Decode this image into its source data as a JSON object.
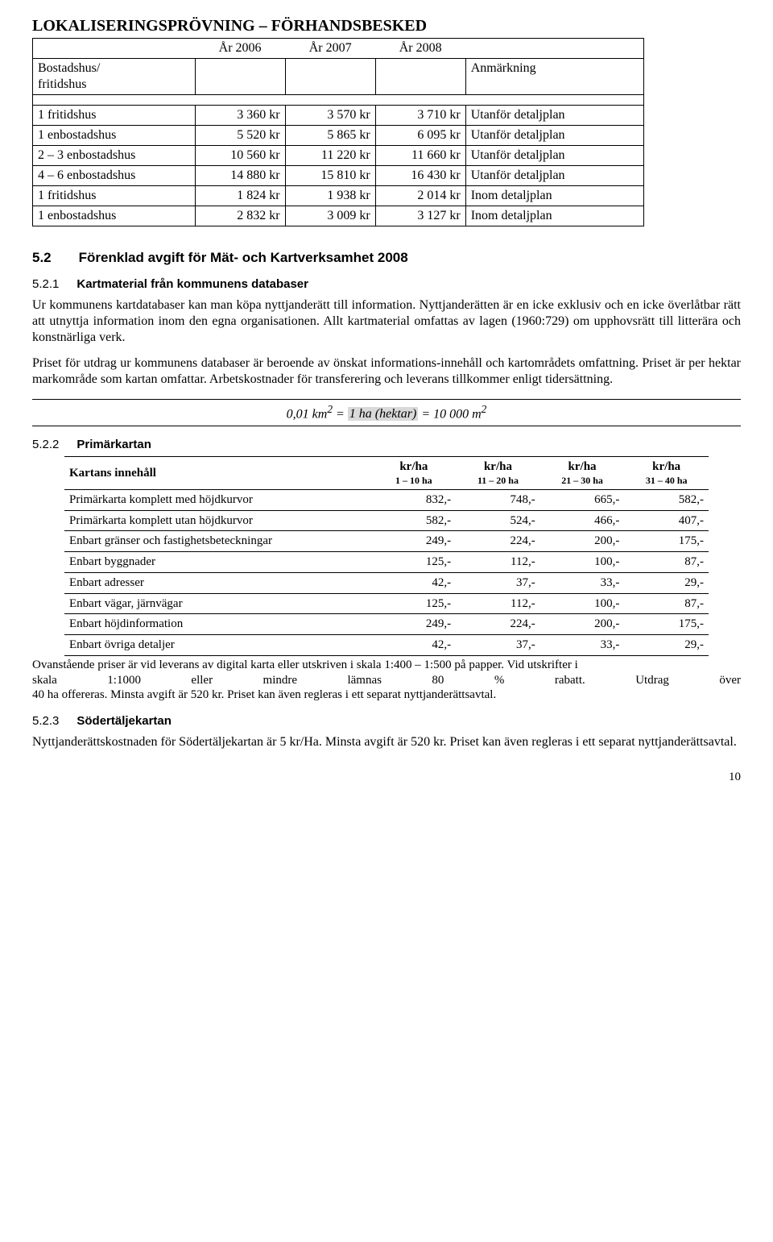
{
  "title": "LOKALISERINGSPRÖVNING – FÖRHANDSBESKED",
  "years": [
    "År 2006",
    "År 2007",
    "År 2008"
  ],
  "header_left": "Bostadshus/\nfritidshus",
  "header_right": "Anmärkning",
  "t1_rows": [
    {
      "lbl": "1 fritidshus",
      "v": [
        "3 360 kr",
        "3 570 kr",
        "3 710 kr"
      ],
      "ann": "Utanför detaljplan"
    },
    {
      "lbl": "1 enbostadshus",
      "v": [
        "5 520 kr",
        "5 865 kr",
        "6 095 kr"
      ],
      "ann": "Utanför detaljplan"
    },
    {
      "lbl": "2 – 3 enbostadshus",
      "v": [
        "10 560 kr",
        "11 220 kr",
        "11 660 kr"
      ],
      "ann": "Utanför detaljplan"
    },
    {
      "lbl": "4 – 6 enbostadshus",
      "v": [
        "14 880 kr",
        "15 810 kr",
        "16 430 kr"
      ],
      "ann": "Utanför detaljplan"
    },
    {
      "lbl": "1 fritidshus",
      "v": [
        "1 824 kr",
        "1 938 kr",
        "2 014 kr"
      ],
      "ann": "Inom detaljplan"
    },
    {
      "lbl": "1 enbostadshus",
      "v": [
        "2 832 kr",
        "3 009 kr",
        "3 127 kr"
      ],
      "ann": "Inom detaljplan"
    }
  ],
  "sec52_num": "5.2",
  "sec52_title": "Förenklad avgift för Mät- och Kartverksamhet 2008",
  "sec521_num": "5.2.1",
  "sec521_title": "Kartmaterial från kommunens databaser",
  "p1": "Ur kommunens kartdatabaser kan man köpa nyttjanderätt till information. Nyttjanderätten är en icke exklusiv och en icke överlåtbar rätt att utnyttja information inom den egna organisationen. Allt kartmaterial omfattas av lagen (1960:729) om upphovsrätt till litterära och konstnärliga verk.",
  "p2": "Priset för utdrag ur kommunens databaser är beroende av önskat informations-innehåll och kartområdets omfattning. Priset är per hektar markområde som kartan omfattar. Arbetskostnader för transferering och leverans tillkommer enligt tidersättning.",
  "formula_pre": "0,01 km",
  "formula_hl": "1 ha (hektar)",
  "formula_post": "10 000 m",
  "sec522_num": "5.2.2",
  "sec522_title": "Primärkartan",
  "t2_header_label": "Kartans innehåll",
  "t2_header_unit": "kr/ha",
  "t2_ranges": [
    "1 – 10 ha",
    "11 – 20 ha",
    "21 – 30 ha",
    "31 – 40 ha"
  ],
  "t2_rows": [
    {
      "lbl": "Primärkarta komplett med höjdkurvor",
      "v": [
        "832,-",
        "748,-",
        "665,-",
        "582,-"
      ]
    },
    {
      "lbl": "Primärkarta komplett utan höjdkurvor",
      "v": [
        "582,-",
        "524,-",
        "466,-",
        "407,-"
      ]
    },
    {
      "lbl": "Enbart gränser och fastighetsbeteckningar",
      "v": [
        "249,-",
        "224,-",
        "200,-",
        "175,-"
      ]
    },
    {
      "lbl": "Enbart byggnader",
      "v": [
        "125,-",
        "112,-",
        "100,-",
        "87,-"
      ]
    },
    {
      "lbl": "Enbart adresser",
      "v": [
        "42,-",
        "37,-",
        "33,-",
        "29,-"
      ]
    },
    {
      "lbl": "Enbart vägar, järnvägar",
      "v": [
        "125,-",
        "112,-",
        "100,-",
        "87,-"
      ]
    },
    {
      "lbl": "Enbart höjdinformation",
      "v": [
        "249,-",
        "224,-",
        "200,-",
        "175,-"
      ]
    },
    {
      "lbl": "Enbart övriga detaljer",
      "v": [
        "42,-",
        "37,-",
        "33,-",
        "29,-"
      ]
    }
  ],
  "t2_note_line1": "Ovanstående priser är vid leverans av digital karta eller utskriven i skala 1:400 – 1:500 på papper. Vid utskrifter i",
  "t2_note_words": [
    "skala",
    "1:1000",
    "eller",
    "mindre",
    "lämnas",
    "80",
    "%",
    "rabatt.",
    "Utdrag",
    "över"
  ],
  "t2_note_line3": "40 ha offereras. Minsta avgift är 520 kr. Priset kan även regleras i ett separat nyttjanderättsavtal.",
  "sec523_num": "5.2.3",
  "sec523_title": "Södertäljekartan",
  "p3": "Nyttjanderättskostnaden för Södertäljekartan är 5 kr/Ha. Minsta avgift är 520 kr. Priset kan även regleras i ett separat nyttjanderättsavtal.",
  "page_number": "10"
}
